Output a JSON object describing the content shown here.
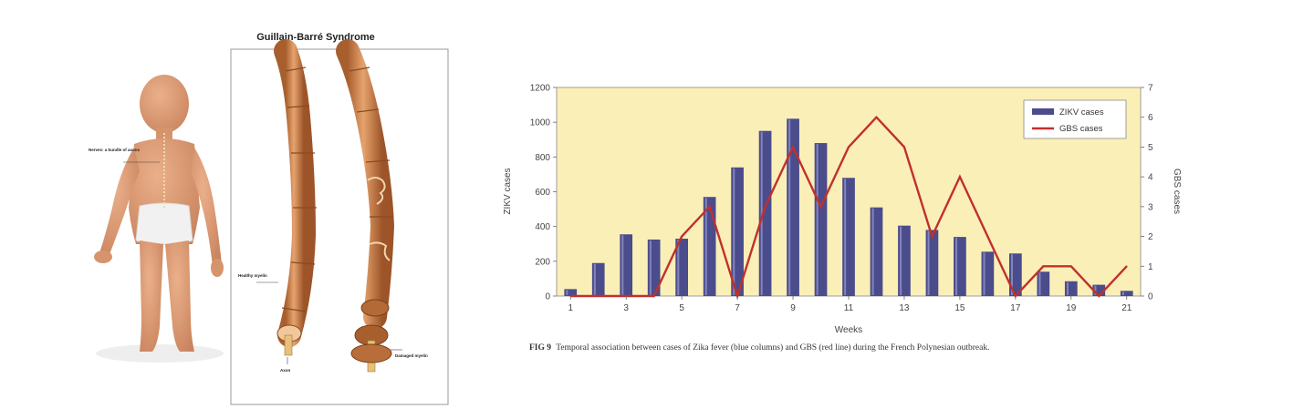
{
  "illustration": {
    "title": "Guillain-Barré Syndrome",
    "label_nerves": "Nerves: a bundle of axons",
    "label_healthy": "Healthy myelin",
    "label_axon": "Axon",
    "label_damaged": "Damaged myelin"
  },
  "caption": {
    "prefix": "FIG 9",
    "text": "Temporal association between cases of Zika fever (blue columns) and GBS (red line) during the French Polynesian outbreak."
  },
  "chart_data": {
    "type": "bar",
    "xlabel": "Weeks",
    "ylabel": "ZIKV cases",
    "y2label": "GBS cases",
    "x": [
      1,
      2,
      3,
      4,
      5,
      6,
      7,
      8,
      9,
      10,
      11,
      12,
      13,
      14,
      15,
      16,
      17,
      18,
      19,
      20,
      21
    ],
    "xticks": [
      "1",
      "3",
      "5",
      "7",
      "9",
      "11",
      "13",
      "15",
      "17",
      "19",
      "21"
    ],
    "ylim": [
      0,
      1200
    ],
    "yticks": [
      0,
      200,
      400,
      600,
      800,
      1000,
      1200
    ],
    "y2lim": [
      0,
      7
    ],
    "y2ticks": [
      0,
      1,
      2,
      3,
      4,
      5,
      6,
      7
    ],
    "grid": false,
    "legend_position": "top-right",
    "background": "#fbefb8",
    "series": [
      {
        "name": "ZIKV cases",
        "type": "bar",
        "axis": "left",
        "color": "#4a4c8c",
        "values": [
          40,
          190,
          355,
          325,
          330,
          570,
          740,
          950,
          1020,
          880,
          680,
          510,
          405,
          380,
          340,
          255,
          245,
          140,
          85,
          65,
          30
        ]
      },
      {
        "name": "GBS cases",
        "type": "line",
        "axis": "right",
        "color": "#c0302e",
        "values": [
          0,
          0,
          0,
          0,
          2,
          3,
          0,
          3,
          5,
          3,
          5,
          6,
          5,
          2,
          4,
          2,
          0,
          1,
          1,
          0,
          1
        ]
      }
    ]
  }
}
